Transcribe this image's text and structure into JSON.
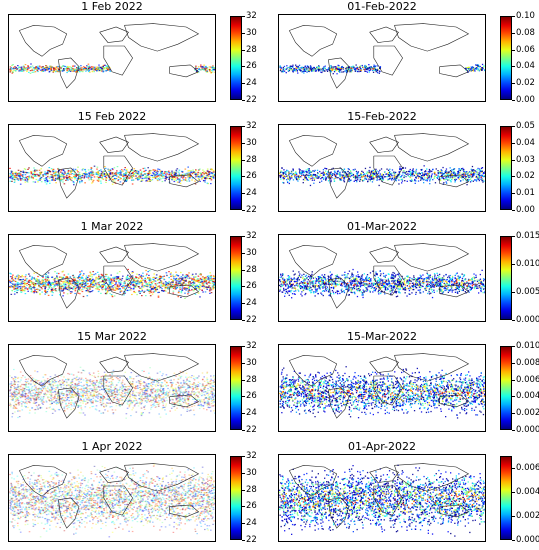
{
  "chart_data": [
    {
      "type": "heatmap",
      "title": "1 Feb 2022",
      "colorbar": {
        "ticks": [
          "32",
          "30",
          "28",
          "26",
          "24",
          "22"
        ],
        "range": [
          22,
          32
        ],
        "colormap": "jet"
      },
      "spread": "narrow-band",
      "extent": 0.35
    },
    {
      "type": "heatmap",
      "title": "01-Feb-2022",
      "colorbar": {
        "ticks": [
          "0.10",
          "0.08",
          "0.06",
          "0.04",
          "0.02",
          "0.00"
        ],
        "range": [
          0,
          0.1
        ],
        "colormap": "jet"
      },
      "spread": "narrow-band",
      "extent": 0.35
    },
    {
      "type": "heatmap",
      "title": "15 Feb 2022",
      "colorbar": {
        "ticks": [
          "32",
          "30",
          "28",
          "26",
          "24",
          "22"
        ],
        "range": [
          22,
          32
        ],
        "colormap": "jet"
      },
      "spread": "band",
      "extent": 1.0
    },
    {
      "type": "heatmap",
      "title": "15-Feb-2022",
      "colorbar": {
        "ticks": [
          "0.05",
          "0.04",
          "0.03",
          "0.02",
          "0.01",
          "0.00"
        ],
        "range": [
          0,
          0.05
        ],
        "colormap": "jet"
      },
      "spread": "band",
      "extent": 1.0
    },
    {
      "type": "heatmap",
      "title": "1 Mar 2022",
      "colorbar": {
        "ticks": [
          "32",
          "30",
          "28",
          "26",
          "24",
          "22"
        ],
        "range": [
          22,
          32
        ],
        "colormap": "jet"
      },
      "spread": "wide-band",
      "extent": 1.0
    },
    {
      "type": "heatmap",
      "title": "01-Mar-2022",
      "colorbar": {
        "ticks": [
          "0.015",
          "0.010",
          "0.005",
          "0.000"
        ],
        "range": [
          0,
          0.015
        ],
        "colormap": "jet"
      },
      "spread": "wide-band",
      "extent": 1.0
    },
    {
      "type": "heatmap",
      "title": "15 Mar 2022",
      "colorbar": {
        "ticks": [
          "32",
          "30",
          "28",
          "26",
          "24",
          "22"
        ],
        "range": [
          22,
          32
        ],
        "colormap": "jet"
      },
      "spread": "hemisphere",
      "extent": 1.0
    },
    {
      "type": "heatmap",
      "title": "15-Mar-2022",
      "colorbar": {
        "ticks": [
          "0.010",
          "0.008",
          "0.006",
          "0.004",
          "0.002",
          "0.000"
        ],
        "range": [
          0,
          0.01
        ],
        "colormap": "jet"
      },
      "spread": "hemisphere",
      "extent": 1.0
    },
    {
      "type": "heatmap",
      "title": "1 Apr 2022",
      "colorbar": {
        "ticks": [
          "32",
          "30",
          "28",
          "26",
          "24",
          "22"
        ],
        "range": [
          22,
          32
        ],
        "colormap": "jet"
      },
      "spread": "global",
      "extent": 1.0
    },
    {
      "type": "heatmap",
      "title": "01-Apr-2022",
      "colorbar": {
        "ticks": [
          "0.006",
          "0.004",
          "0.002",
          "0.000"
        ],
        "range": [
          0,
          0.007
        ],
        "colormap": "jet"
      },
      "spread": "global",
      "extent": 1.0
    }
  ]
}
